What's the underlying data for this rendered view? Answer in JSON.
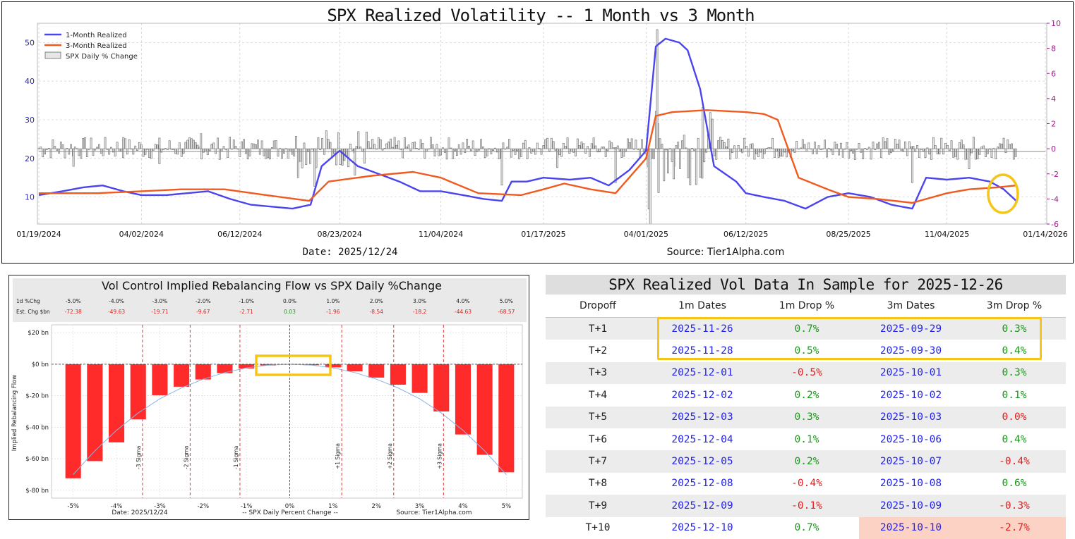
{
  "colors": {
    "one_month": "#4b44ee",
    "three_month": "#f05a1e",
    "spx_bar_fill": "#e6e6e6",
    "spx_bar_edge": "#666666",
    "right_axis": "#9b1a8a",
    "flow_bar": "#ff2b2b",
    "flow_curve": "#8cb4e6",
    "sigma_line": "#e03a3a",
    "highlight": "#f5c518",
    "date_blue": "#2323ee",
    "pos_green": "#1a9a1a",
    "neg_red": "#e21f1f"
  },
  "chart_data": [
    {
      "type": "line",
      "title": "SPX Realized Volatility -- 1 Month vs 3 Month",
      "date_note": "Date: 2025/12/24",
      "source_note": "Source: Tier1Alpha.com",
      "x_ticks": [
        "01/19/2024",
        "04/02/2024",
        "06/12/2024",
        "08/23/2024",
        "11/04/2024",
        "01/17/2025",
        "04/01/2025",
        "06/12/2025",
        "08/25/2025",
        "11/04/2025",
        "01/14/2026"
      ],
      "y_left_ticks": [
        "10",
        "20",
        "30",
        "40",
        "50"
      ],
      "y_left_lim": [
        3,
        55
      ],
      "y_right_ticks": [
        "-6",
        "-4",
        "-2",
        "0",
        "2",
        "4",
        "6",
        "8",
        "10"
      ],
      "y_right_lim": [
        -6,
        10
      ],
      "legend_position": "top-left",
      "legend": [
        "1-Month Realized",
        "3-Month Realized",
        "SPX Daily % Change"
      ],
      "series": [
        {
          "name": "1-Month Realized",
          "axis": "left",
          "x": [
            "2024-01-19",
            "2024-02-05",
            "2024-02-20",
            "2024-03-05",
            "2024-03-20",
            "2024-04-02",
            "2024-04-20",
            "2024-05-05",
            "2024-05-20",
            "2024-06-05",
            "2024-06-20",
            "2024-07-05",
            "2024-07-20",
            "2024-08-02",
            "2024-08-10",
            "2024-08-23",
            "2024-09-05",
            "2024-09-20",
            "2024-10-05",
            "2024-10-20",
            "2024-11-04",
            "2024-11-20",
            "2024-12-05",
            "2024-12-18",
            "2024-12-25",
            "2025-01-05",
            "2025-01-17",
            "2025-02-05",
            "2025-02-20",
            "2025-03-05",
            "2025-03-20",
            "2025-04-01",
            "2025-04-08",
            "2025-04-15",
            "2025-04-25",
            "2025-05-01",
            "2025-05-10",
            "2025-05-20",
            "2025-06-05",
            "2025-06-12",
            "2025-06-25",
            "2025-07-10",
            "2025-07-25",
            "2025-08-10",
            "2025-08-25",
            "2025-09-10",
            "2025-09-25",
            "2025-10-10",
            "2025-10-20",
            "2025-11-04",
            "2025-11-20",
            "2025-12-05",
            "2025-12-15",
            "2025-12-24"
          ],
          "values": [
            10.5,
            11.5,
            12.5,
            13,
            11.5,
            10.5,
            10.5,
            11,
            11.5,
            9.5,
            8,
            7.5,
            7,
            8,
            18,
            22,
            18,
            16,
            14,
            11.5,
            11.5,
            10.5,
            9.5,
            9,
            14,
            14,
            15,
            14.5,
            15,
            13,
            17,
            22,
            49,
            51,
            50,
            48,
            38,
            18,
            14,
            11,
            10,
            9,
            7,
            10,
            11,
            10,
            8,
            7,
            15,
            14.5,
            15,
            14,
            12,
            9
          ]
        },
        {
          "name": "3-Month Realized",
          "axis": "left",
          "x": [
            "2024-01-19",
            "2024-03-01",
            "2024-04-02",
            "2024-05-01",
            "2024-06-01",
            "2024-07-01",
            "2024-08-01",
            "2024-08-15",
            "2024-09-15",
            "2024-10-15",
            "2024-11-04",
            "2024-12-01",
            "2025-01-01",
            "2025-01-17",
            "2025-02-01",
            "2025-02-20",
            "2025-03-10",
            "2025-04-01",
            "2025-04-08",
            "2025-04-20",
            "2025-05-15",
            "2025-06-12",
            "2025-06-25",
            "2025-07-05",
            "2025-07-10",
            "2025-07-20",
            "2025-08-10",
            "2025-08-25",
            "2025-09-15",
            "2025-10-10",
            "2025-11-04",
            "2025-11-20",
            "2025-12-10",
            "2025-12-24"
          ],
          "values": [
            11,
            11,
            11.5,
            12,
            12,
            10.5,
            9,
            14,
            15.5,
            16.5,
            15,
            11,
            10.5,
            12,
            13.5,
            12,
            11,
            20,
            31,
            32,
            32.5,
            32,
            31.5,
            30,
            25,
            15,
            12,
            10,
            9.5,
            8.5,
            11,
            12,
            12.5,
            13
          ]
        },
        {
          "name": "SPX Daily % Change",
          "axis": "right",
          "x": [
            "2024-02-13",
            "2024-03-20",
            "2024-04-15",
            "2024-05-15",
            "2024-07-24",
            "2024-08-05",
            "2024-09-03",
            "2024-12-18",
            "2025-01-27",
            "2025-03-10",
            "2025-04-03",
            "2025-04-04",
            "2025-04-09",
            "2025-04-10",
            "2025-04-21",
            "2025-05-12",
            "2025-10-10",
            "2025-11-20"
          ],
          "values": [
            -1.4,
            0.9,
            -1.2,
            1.2,
            -2.3,
            -3.0,
            -2.1,
            -2.9,
            -1.5,
            -2.7,
            -4.8,
            -6.0,
            9.5,
            -3.5,
            -2.4,
            3.3,
            -2.7,
            -1.6
          ]
        }
      ]
    },
    {
      "type": "bar",
      "title": "Vol Control Implied Rebalancing Flow vs SPX Daily %Change",
      "date_note": "Date: 2025/12/24",
      "xlabel": "-- SPX Daily Percent Change --",
      "ylabel": "Implied Rebalancing Flow",
      "source_note": "Source: Tier1Alpha.com",
      "x_ticks": [
        "-5%",
        "-4%",
        "-3%",
        "-2%",
        "-1%",
        "0%",
        "1%",
        "2%",
        "3%",
        "4%",
        "5%"
      ],
      "y_ticks": [
        "$20 bn",
        "$0 bn",
        "$-20 bn",
        "$-40 bn",
        "$-60 bn",
        "$-80 bn"
      ],
      "ylim": [
        -85,
        25
      ],
      "header_row1_label": "1d %Chg",
      "header_row2_label": "Est. Chg $bn",
      "header_pct": [
        "-5.0%",
        "-4.0%",
        "-3.0%",
        "-2.0%",
        "-1.0%",
        "0.0%",
        "1.0%",
        "2.0%",
        "3.0%",
        "4.0%",
        "5.0%"
      ],
      "header_chg": [
        "-72.38",
        "-49.63",
        "-19.71",
        "-9.67",
        "-2.71",
        "0.03",
        "-1.96",
        "-8.54",
        "-18.2",
        "-44.63",
        "-68.57"
      ],
      "x": [
        -5.0,
        -4.5,
        -4.0,
        -3.5,
        -3.0,
        -2.5,
        -2.0,
        -1.5,
        -1.0,
        -0.5,
        0.0,
        0.5,
        1.0,
        1.5,
        2.0,
        2.5,
        3.0,
        3.5,
        4.0,
        4.5,
        5.0
      ],
      "values": [
        -72.4,
        -61.5,
        -49.6,
        -35.0,
        -19.7,
        -14.3,
        -9.7,
        -5.7,
        -2.7,
        -0.8,
        0.03,
        -0.6,
        -2.0,
        -4.5,
        -8.5,
        -13.0,
        -18.2,
        -30.0,
        -44.6,
        -57.5,
        -68.6
      ],
      "curve": [
        -70,
        -55,
        -42,
        -31,
        -22,
        -15,
        -9.5,
        -5.3,
        -2.3,
        -0.6,
        0,
        -0.6,
        -2.3,
        -5.3,
        -9.5,
        -15,
        -22,
        -31,
        -42,
        -55,
        -70
      ],
      "sigma_lines": [
        {
          "label": "-3 Sigma",
          "x": -3.4
        },
        {
          "label": "-2 Sigma",
          "x": -2.3
        },
        {
          "label": "-1 Sigma",
          "x": -1.15
        },
        {
          "label": "+1 Sigma",
          "x": 1.2
        },
        {
          "label": "+2 Sigma",
          "x": 2.4
        },
        {
          "label": "+3 Sigma",
          "x": 3.55
        }
      ]
    },
    {
      "type": "table",
      "title": "SPX Realized Vol Data In Sample for 2025-12-26",
      "columns": [
        "Dropoff",
        "1m Dates",
        "1m Drop %",
        "3m Dates",
        "3m Drop %"
      ],
      "rows": [
        [
          "T+1",
          "2025-11-26",
          "0.7%",
          "2025-09-29",
          "0.3%"
        ],
        [
          "T+2",
          "2025-11-28",
          "0.5%",
          "2025-09-30",
          "0.4%"
        ],
        [
          "T+3",
          "2025-12-01",
          "-0.5%",
          "2025-10-01",
          "0.3%"
        ],
        [
          "T+4",
          "2025-12-02",
          "0.2%",
          "2025-10-02",
          "0.1%"
        ],
        [
          "T+5",
          "2025-12-03",
          "0.3%",
          "2025-10-03",
          "0.0%"
        ],
        [
          "T+6",
          "2025-12-04",
          "0.1%",
          "2025-10-06",
          "0.4%"
        ],
        [
          "T+7",
          "2025-12-05",
          "0.2%",
          "2025-10-07",
          "-0.4%"
        ],
        [
          "T+8",
          "2025-12-08",
          "-0.4%",
          "2025-10-08",
          "0.6%"
        ],
        [
          "T+9",
          "2025-12-09",
          "-0.1%",
          "2025-10-09",
          "-0.3%"
        ],
        [
          "T+10",
          "2025-12-10",
          "0.7%",
          "2025-10-10",
          "-2.7%"
        ]
      ],
      "highlight_cell": {
        "row": 9,
        "col": 3
      }
    }
  ]
}
